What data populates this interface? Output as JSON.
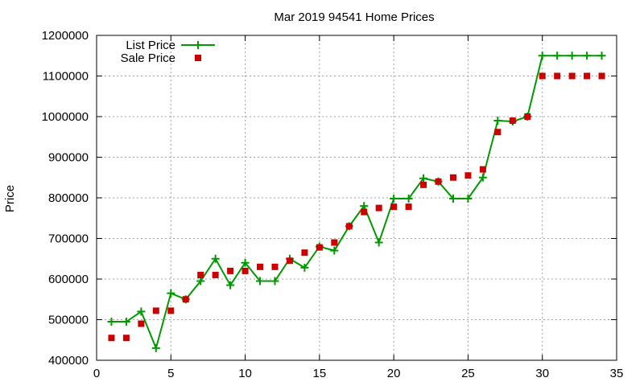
{
  "chart_data": {
    "type": "line",
    "title": "Mar 2019 94541 Home Prices",
    "xlabel": "",
    "ylabel": "Price",
    "xlim": [
      0,
      35
    ],
    "ylim": [
      400000,
      1200000
    ],
    "xticks": [
      0,
      5,
      10,
      15,
      20,
      25,
      30,
      35
    ],
    "yticks": [
      400000,
      500000,
      600000,
      700000,
      800000,
      900000,
      1000000,
      1100000,
      1200000
    ],
    "grid": true,
    "legend_position": "top-left",
    "series": [
      {
        "name": "List Price",
        "style": "line+cross",
        "color": "#009900",
        "x": [
          1,
          2,
          3,
          4,
          5,
          6,
          7,
          8,
          9,
          10,
          11,
          12,
          13,
          14,
          15,
          16,
          17,
          18,
          19,
          20,
          21,
          22,
          23,
          24,
          25,
          26,
          27,
          28,
          29,
          30,
          31,
          32,
          33,
          34
        ],
        "values": [
          495000,
          495000,
          520000,
          430000,
          565000,
          550000,
          595000,
          650000,
          585000,
          640000,
          595000,
          595000,
          650000,
          628000,
          680000,
          670000,
          730000,
          780000,
          690000,
          798000,
          798000,
          848000,
          840000,
          798000,
          798000,
          850000,
          990000,
          988000,
          1000000,
          1150000,
          1150000,
          1150000,
          1150000,
          1150000
        ]
      },
      {
        "name": "Sale Price",
        "style": "square",
        "color": "#cc0000",
        "x": [
          1,
          2,
          3,
          4,
          5,
          6,
          7,
          8,
          9,
          10,
          11,
          12,
          13,
          14,
          15,
          16,
          17,
          18,
          19,
          20,
          21,
          22,
          23,
          24,
          25,
          26,
          27,
          28,
          29,
          30,
          31,
          32,
          33,
          34
        ],
        "values": [
          455000,
          455000,
          490000,
          522000,
          522000,
          550000,
          610000,
          610000,
          620000,
          620000,
          630000,
          630000,
          645000,
          665000,
          678000,
          690000,
          730000,
          765000,
          775000,
          778000,
          778000,
          832000,
          840000,
          850000,
          855000,
          870000,
          962000,
          990000,
          1000000,
          1100000,
          1100000,
          1100000,
          1100000,
          1100000
        ]
      }
    ]
  }
}
